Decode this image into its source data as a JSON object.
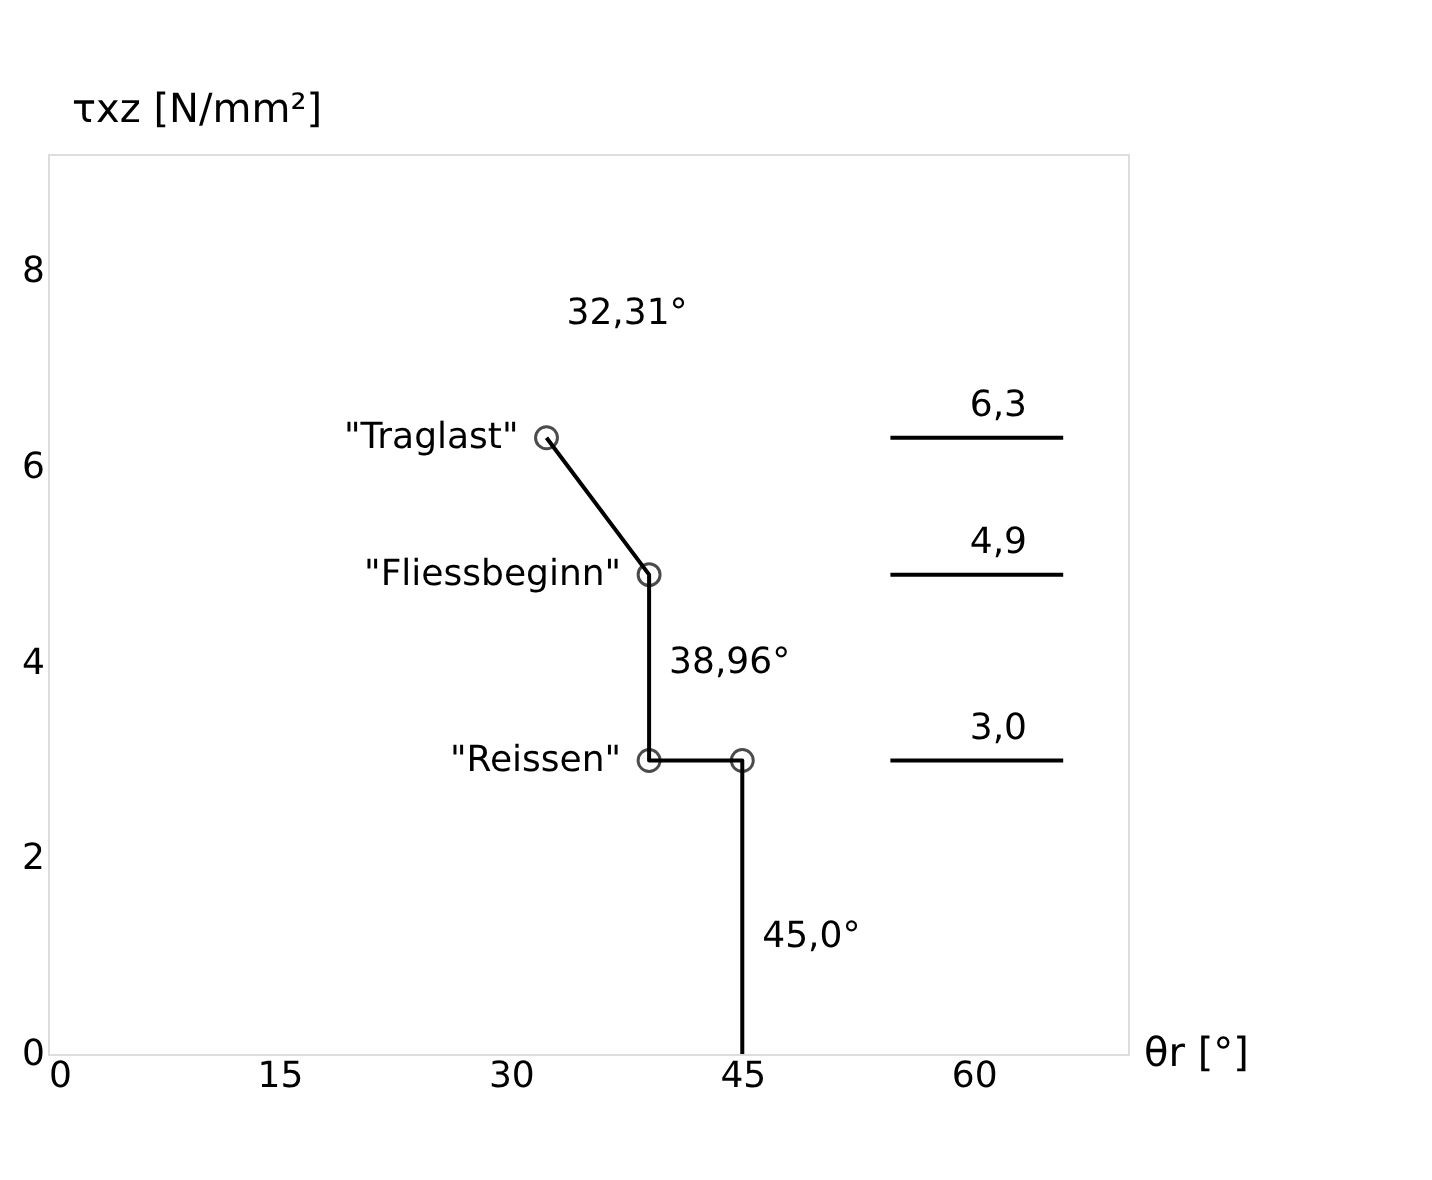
{
  "chart_data": {
    "type": "line",
    "xlabel": "θr [°]",
    "ylabel": "τxz [N/mm²]",
    "xlim": [
      0,
      70
    ],
    "ylim": [
      0,
      9.2
    ],
    "xticks": [
      0,
      15,
      30,
      45,
      60
    ],
    "yticks": [
      0,
      2,
      4,
      6,
      8
    ],
    "grid": false,
    "series": [
      {
        "color": "#000000",
        "x": [
          32.31,
          38.96,
          38.96,
          45,
          45
        ],
        "values": [
          6.3,
          4.9,
          3.0,
          3.0,
          0
        ],
        "marker": "none"
      },
      {
        "type": "scatter",
        "color": "#000000",
        "x": [
          32.31,
          38.96,
          38.96,
          45
        ],
        "values": [
          6.3,
          4.9,
          3.0,
          3.0
        ],
        "marker": "circle"
      }
    ],
    "ref_lines": [
      {
        "axis": "y",
        "value": 6.3,
        "label": "6,3"
      },
      {
        "axis": "y",
        "value": 4.9,
        "label": "4,9"
      },
      {
        "axis": "y",
        "value": 3.0,
        "label": "3,0"
      }
    ],
    "annotations": [
      {
        "text": "32,31°",
        "x": 32.31,
        "y": 6.3
      },
      {
        "text": "38,96°",
        "x": 38.96,
        "y": 4.0
      },
      {
        "text": "45,0°",
        "x": 45,
        "y": 1.2
      },
      {
        "text": "\"Traglast\"",
        "x": 32.31,
        "y": 6.3
      },
      {
        "text": "\"Fliessbeginn\"",
        "x": 38.96,
        "y": 4.9
      },
      {
        "text": "\"Reissen\"",
        "x": 38.96,
        "y": 3.0
      }
    ]
  }
}
